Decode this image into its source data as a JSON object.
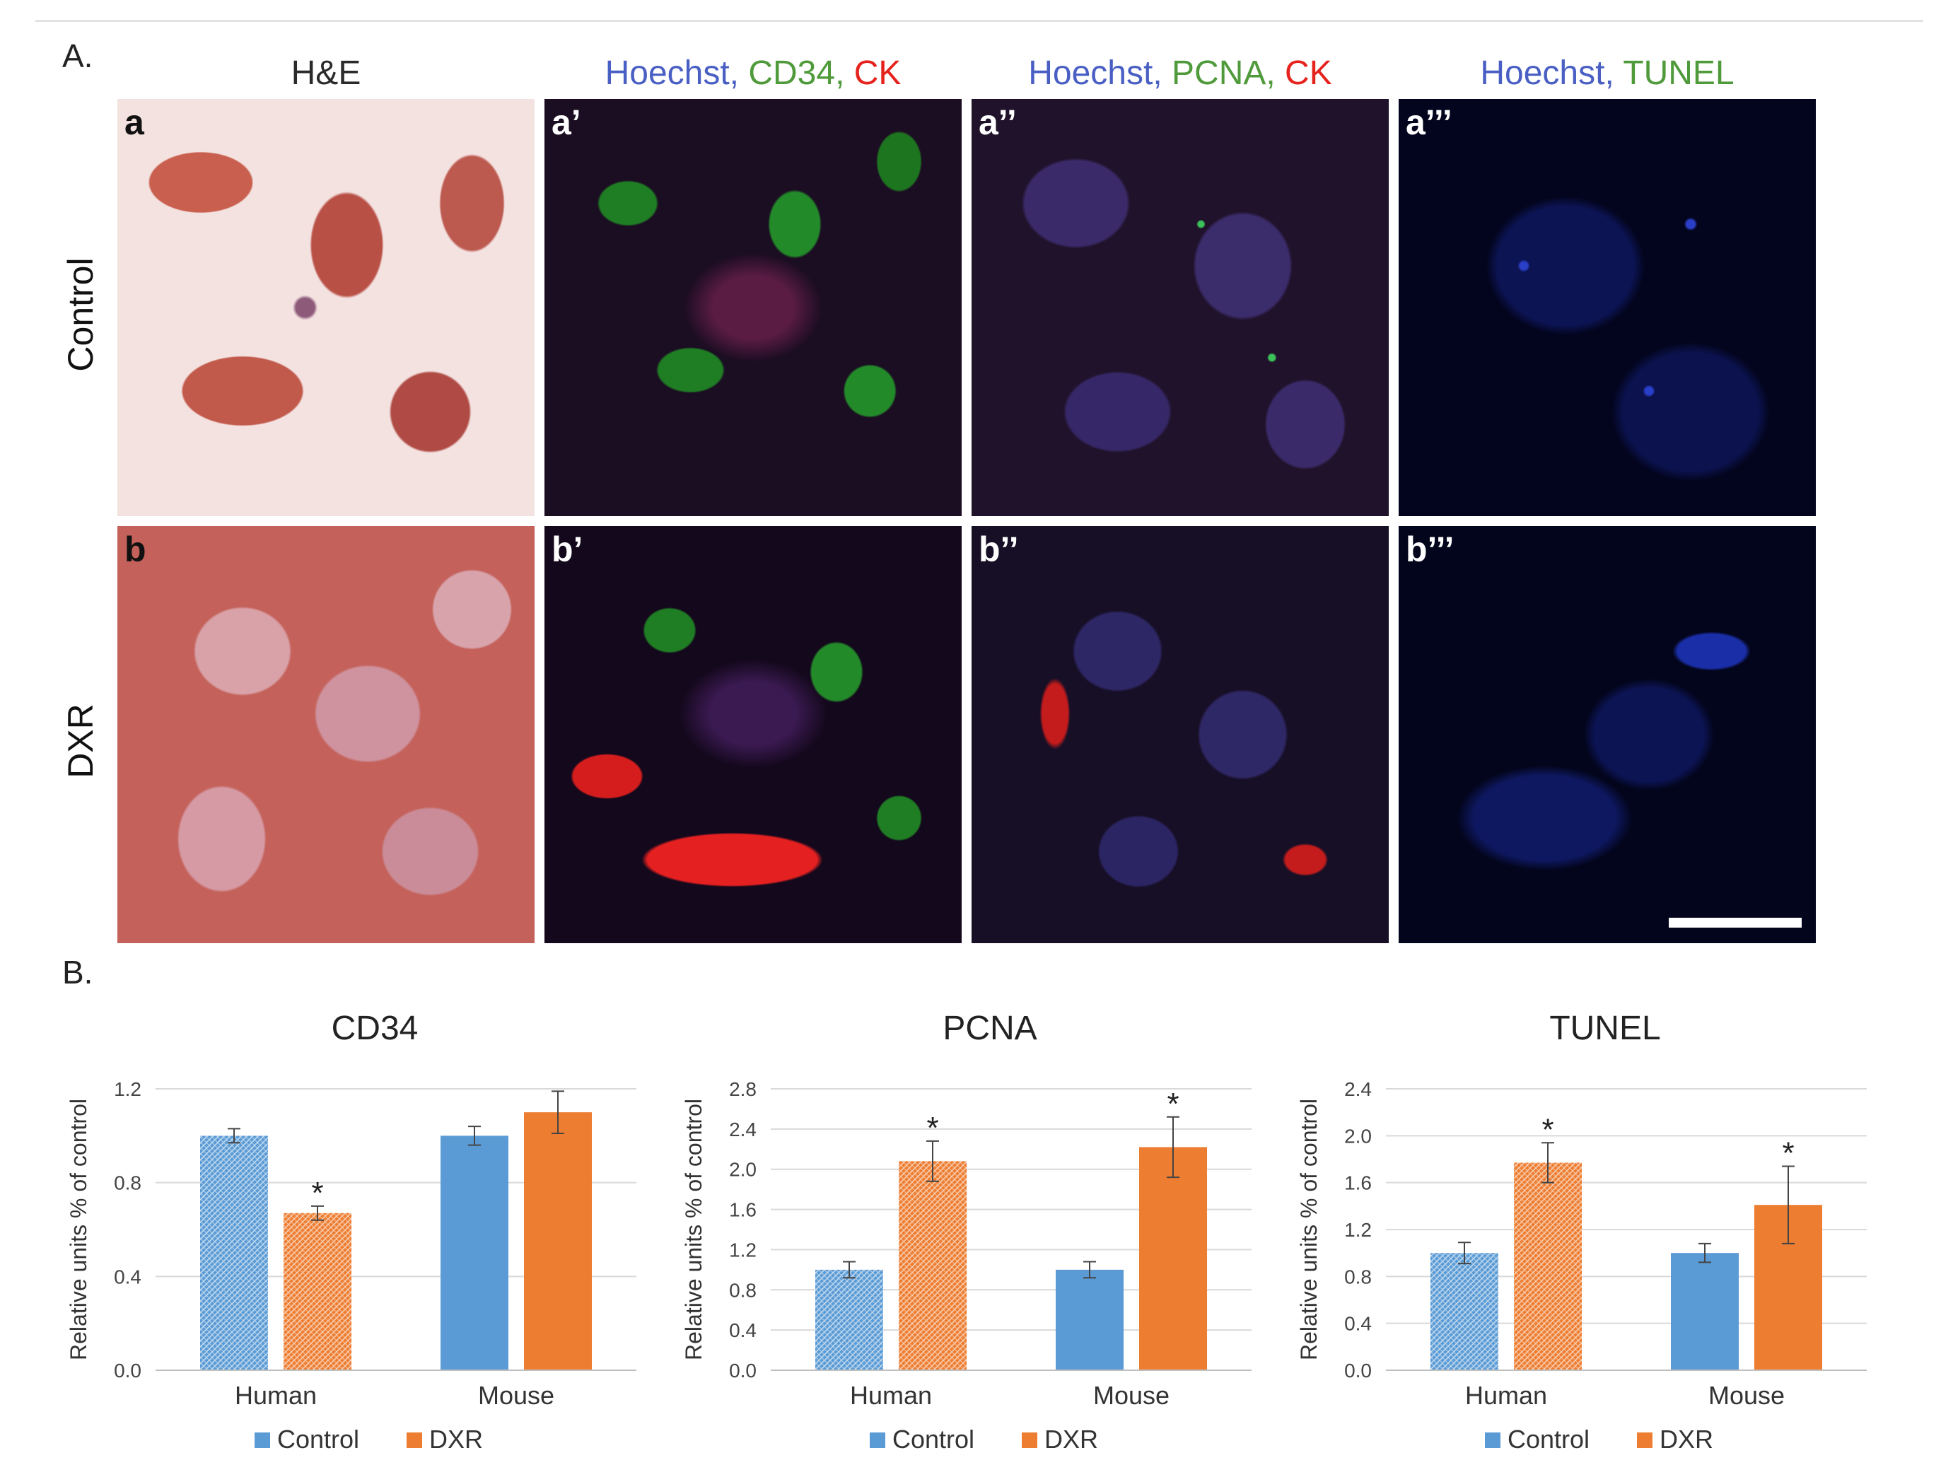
{
  "section_a_label": "A.",
  "section_b_label": "B.",
  "columns": [
    {
      "parts": [
        {
          "text": "H&E",
          "color": "#2a2a2a"
        }
      ]
    },
    {
      "parts": [
        {
          "text": "Hoechst, ",
          "color": "#4a5fc4"
        },
        {
          "text": "CD34, ",
          "color": "#4f9a3a"
        },
        {
          "text": "CK",
          "color": "#e5221c"
        }
      ]
    },
    {
      "parts": [
        {
          "text": "Hoechst, ",
          "color": "#4a5fc4"
        },
        {
          "text": "PCNA, ",
          "color": "#4f9a3a"
        },
        {
          "text": "CK",
          "color": "#e5221c"
        }
      ]
    },
    {
      "parts": [
        {
          "text": "Hoechst, ",
          "color": "#4a5fc4"
        },
        {
          "text": "TUNEL",
          "color": "#4f9a3a"
        }
      ]
    }
  ],
  "rows": [
    "Control",
    "DXR"
  ],
  "panel_labels": [
    [
      "a",
      "a’",
      "a’’",
      "a’’’"
    ],
    [
      "b",
      "b’",
      "b’’",
      "b’’’"
    ]
  ],
  "chart_data": [
    {
      "type": "bar",
      "title": "CD34",
      "ylabel": "Relative units % of control",
      "ylim": [
        0,
        1.2
      ],
      "yticks": [
        "0.0",
        "0.4",
        "0.8",
        "1.2"
      ],
      "categories": [
        "Human",
        "Mouse"
      ],
      "series": [
        {
          "name": "Control",
          "values": [
            1.0,
            1.0
          ],
          "errors": [
            0.03,
            0.04
          ],
          "color": "#5b9bd5"
        },
        {
          "name": "DXR",
          "values": [
            0.67,
            1.1
          ],
          "errors": [
            0.03,
            0.09
          ],
          "color": "#ed7d31"
        }
      ],
      "significant": [
        [
          false,
          false
        ],
        [
          true,
          false
        ]
      ],
      "hatched_category": "Human",
      "legend": "bottom"
    },
    {
      "type": "bar",
      "title": "PCNA",
      "ylabel": "Relative units % of control",
      "ylim": [
        0,
        2.8
      ],
      "yticks": [
        "0.0",
        "0.4",
        "0.8",
        "1.2",
        "1.6",
        "2.0",
        "2.4",
        "2.8"
      ],
      "categories": [
        "Human",
        "Mouse"
      ],
      "series": [
        {
          "name": "Control",
          "values": [
            1.0,
            1.0
          ],
          "errors": [
            0.08,
            0.08
          ],
          "color": "#5b9bd5"
        },
        {
          "name": "DXR",
          "values": [
            2.08,
            2.22
          ],
          "errors": [
            0.2,
            0.3
          ],
          "color": "#ed7d31"
        }
      ],
      "significant": [
        [
          false,
          false
        ],
        [
          true,
          true
        ]
      ],
      "hatched_category": "Human",
      "legend": "bottom"
    },
    {
      "type": "bar",
      "title": "TUNEL",
      "ylabel": "Relative units % of control",
      "ylim": [
        0,
        2.4
      ],
      "yticks": [
        "0.0",
        "0.4",
        "0.8",
        "1.2",
        "1.6",
        "2.0",
        "2.4"
      ],
      "categories": [
        "Human",
        "Mouse"
      ],
      "series": [
        {
          "name": "Control",
          "values": [
            1.0,
            1.0
          ],
          "errors": [
            0.09,
            0.08
          ],
          "color": "#5b9bd5"
        },
        {
          "name": "DXR",
          "values": [
            1.77,
            1.41
          ],
          "errors": [
            0.17,
            0.33
          ],
          "color": "#ed7d31"
        }
      ],
      "significant": [
        [
          false,
          false
        ],
        [
          true,
          true
        ]
      ],
      "hatched_category": "Human",
      "legend": "bottom"
    }
  ]
}
